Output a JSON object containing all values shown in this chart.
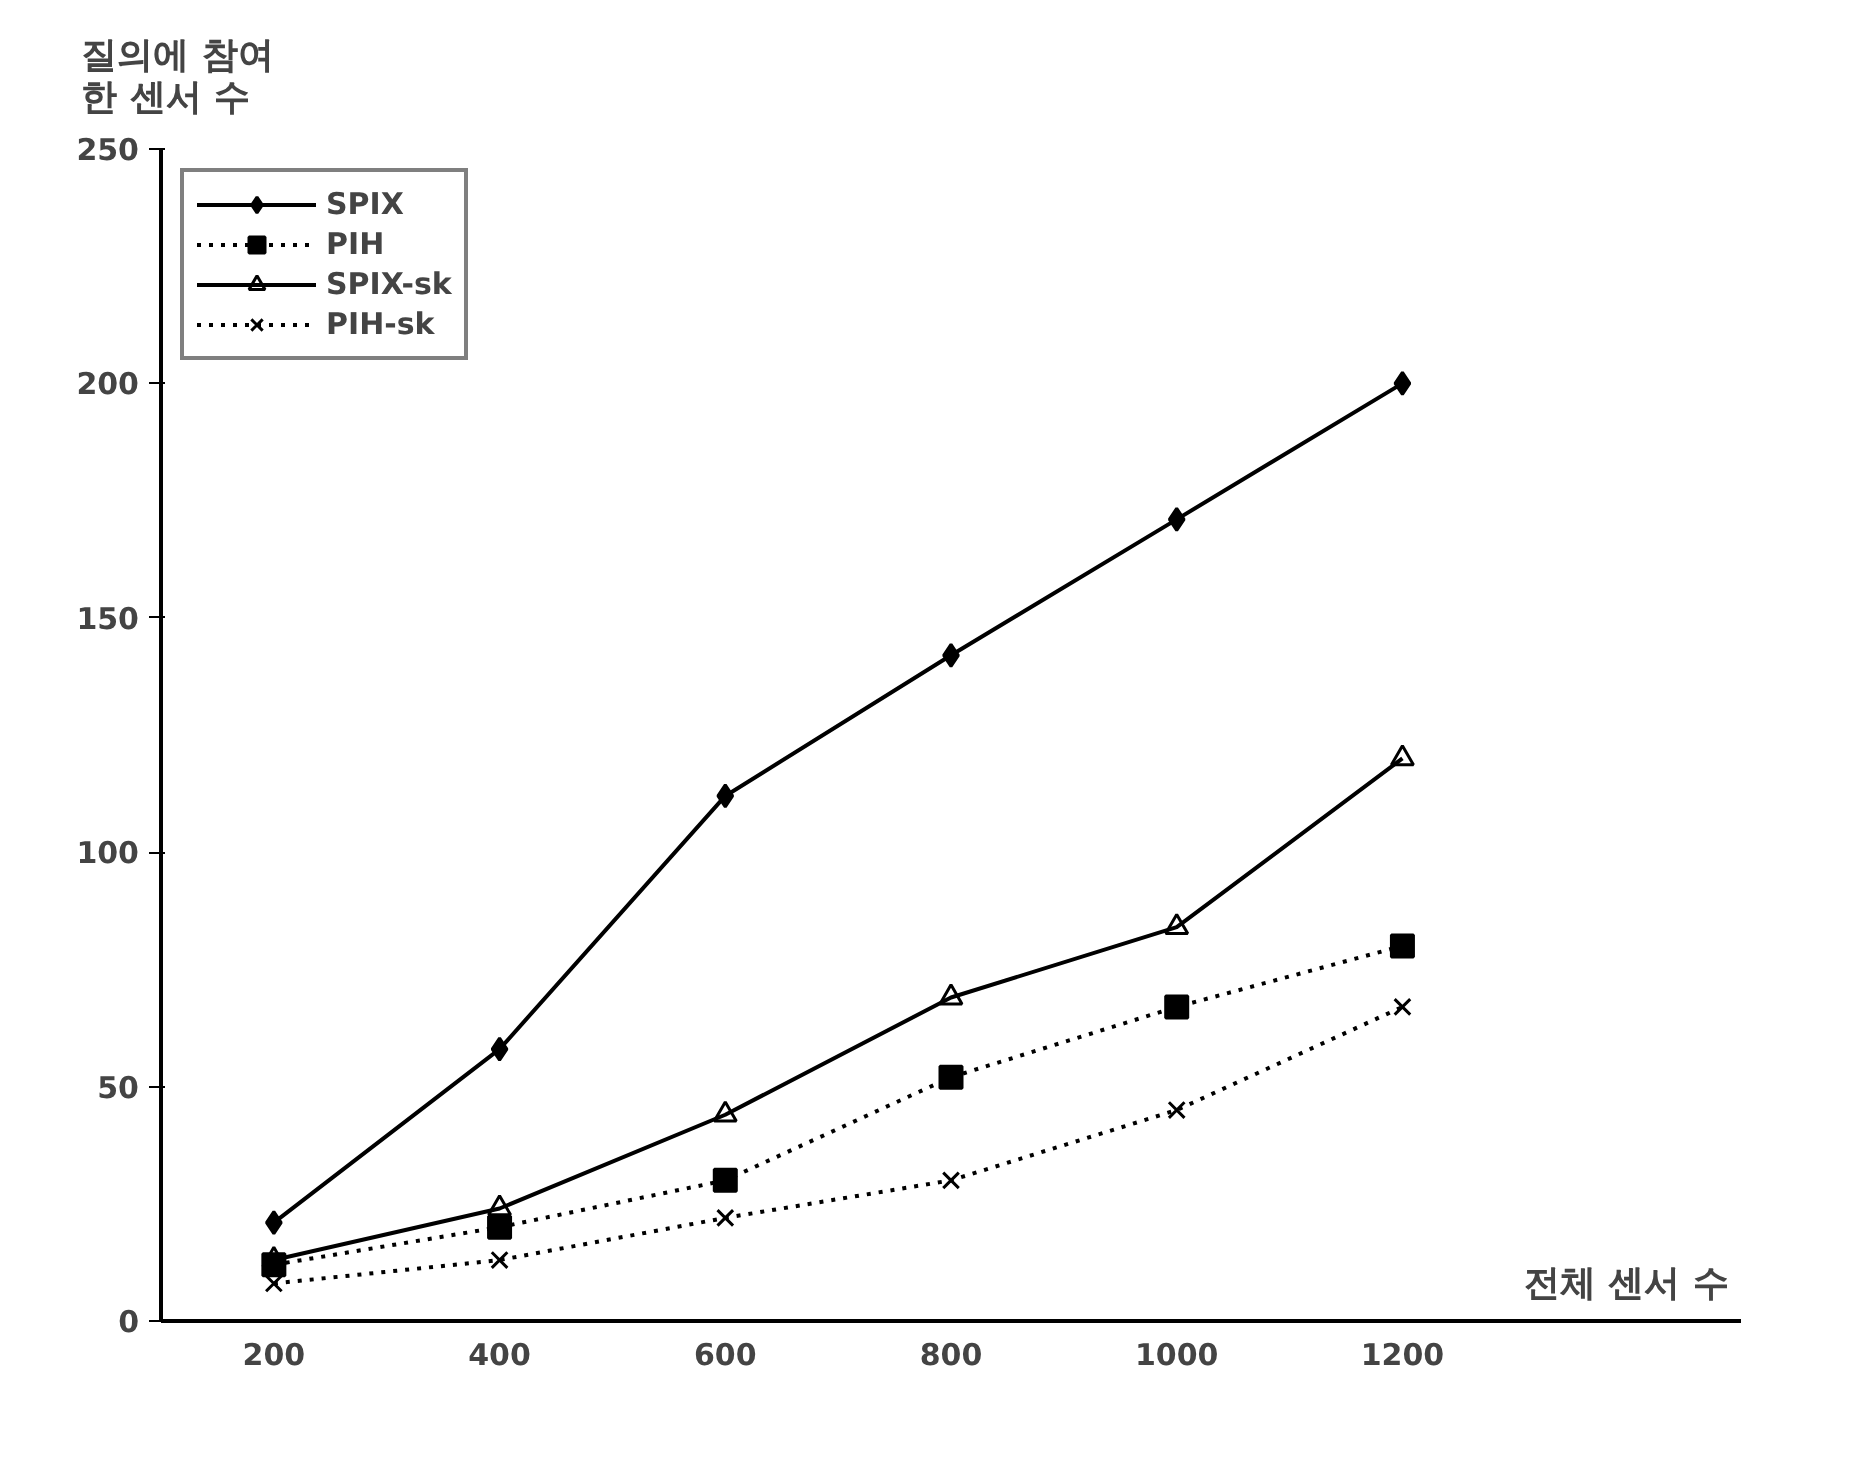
{
  "chart_data": {
    "type": "line",
    "xlabel": "전체 센서 수",
    "ylabel": "질의에 참여\n한 센서 수",
    "categories": [
      "200",
      "400",
      "600",
      "800",
      "1000",
      "1200"
    ],
    "ylim": [
      0,
      250
    ],
    "yticks": [
      0,
      50,
      100,
      150,
      200,
      250
    ],
    "grid": false,
    "legend": "top left",
    "series": [
      {
        "name": "SPIX",
        "color": "#000000",
        "marker": "diamond",
        "line_style": "solid",
        "values": [
          21,
          58,
          112,
          142,
          171,
          200
        ]
      },
      {
        "name": "PIH",
        "color": "#000000",
        "marker": "square",
        "line_style": "dotted",
        "values": [
          12,
          20,
          30,
          52,
          67,
          80
        ]
      },
      {
        "name": "SPIX-sk",
        "color": "#000000",
        "marker": "triangle",
        "line_style": "solid",
        "values": [
          13,
          24,
          44,
          69,
          84,
          120
        ]
      },
      {
        "name": "PIH-sk",
        "color": "#000000",
        "marker": "cross",
        "line_style": "dotted",
        "values": [
          8,
          13,
          22,
          30,
          45,
          67
        ]
      }
    ]
  }
}
